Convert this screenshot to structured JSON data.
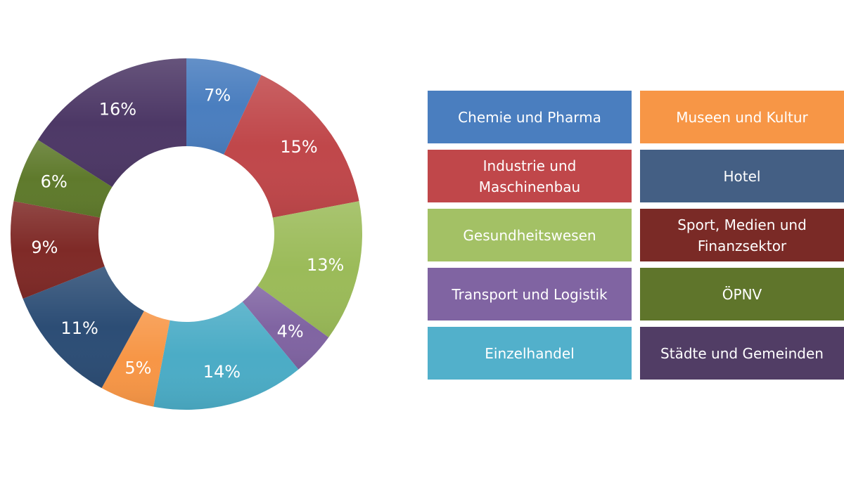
{
  "chart_data": {
    "type": "pie",
    "variant": "donut",
    "title": "",
    "center": [
      265,
      333
    ],
    "outer_radius": 250,
    "inner_radius": 125,
    "start_angle_deg": 0,
    "direction": "clockwise",
    "slices": [
      {
        "label": "Chemie und Pharma",
        "value": 7,
        "display": "7%",
        "color": "#4a7ebf"
      },
      {
        "label": "Industrie und Maschinenbau",
        "value": 15,
        "display": "15%",
        "color": "#c0474a"
      },
      {
        "label": "Gesundheitswesen",
        "value": 13,
        "display": "13%",
        "color": "#9bbb59"
      },
      {
        "label": "Transport und Logistik",
        "value": 4,
        "display": "4%",
        "color": "#8064a2"
      },
      {
        "label": "Einzelhandel",
        "value": 14,
        "display": "14%",
        "color": "#4bacc6"
      },
      {
        "label": "Museen und Kultur",
        "value": 5,
        "display": "5%",
        "color": "#f79646"
      },
      {
        "label": "Hotel",
        "value": 11,
        "display": "11%",
        "color": "#2c4d75"
      },
      {
        "label": "Sport, Medien und Finanzsektor",
        "value": 9,
        "display": "9%",
        "color": "#7f2a27"
      },
      {
        "label": "ÖPNV",
        "value": 6,
        "display": "6%",
        "color": "#5f7a2c"
      },
      {
        "label": "Städte und Gemeinden",
        "value": 16,
        "display": "16%",
        "color": "#4d3866"
      }
    ],
    "legend_position": "right"
  },
  "legend": {
    "items": [
      {
        "label": "Chemie und Pharma",
        "color": "#4a7ebf"
      },
      {
        "label": "Museen und Kultur",
        "color": "#f79646"
      },
      {
        "label": "Industrie und\nMaschinenbau",
        "color": "#c0474a"
      },
      {
        "label": "Hotel",
        "color": "#445f84"
      },
      {
        "label": "Gesundheitswesen",
        "color": "#a3c165"
      },
      {
        "label": "Sport, Medien und\nFinanzsektor",
        "color": "#7a2a26"
      },
      {
        "label": "Transport und Logistik",
        "color": "#8064a2"
      },
      {
        "label": "ÖPNV",
        "color": "#5f752b"
      },
      {
        "label": "Einzelhandel",
        "color": "#52b0cb"
      },
      {
        "label": "Städte und Gemeinden",
        "color": "#513d65"
      }
    ]
  }
}
